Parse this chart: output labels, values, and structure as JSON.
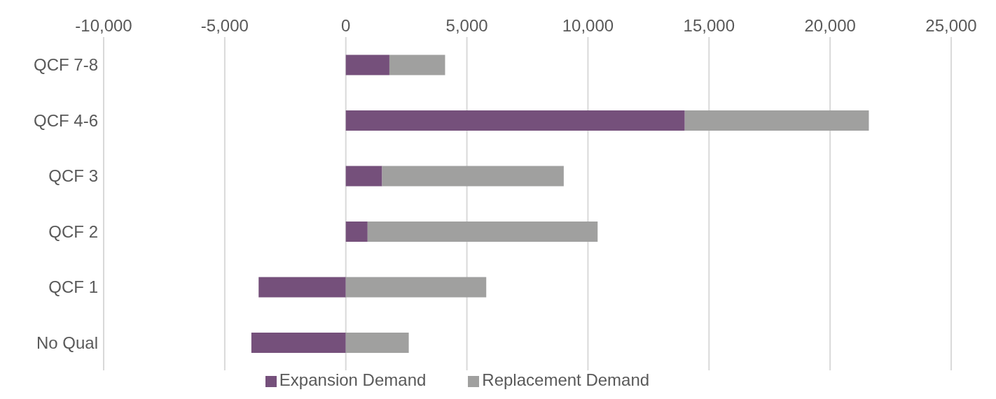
{
  "chart_data": {
    "type": "bar",
    "orientation": "horizontal",
    "stacked": true,
    "categories": [
      "QCF 7-8",
      "QCF 4-6",
      "QCF 3",
      "QCF 2",
      "QCF 1",
      "No Qual"
    ],
    "series": [
      {
        "name": "Expansion Demand",
        "color": "#75507b",
        "values": [
          1800,
          14000,
          1500,
          900,
          -3600,
          -3900
        ]
      },
      {
        "name": "Replacement Demand",
        "color": "#a0a09f",
        "values": [
          2300,
          7600,
          7500,
          9500,
          5800,
          2600
        ]
      }
    ],
    "xlim": [
      -10000,
      25000
    ],
    "xticks": [
      {
        "value": -10000,
        "label": "-10,000"
      },
      {
        "value": -5000,
        "label": "-5,000"
      },
      0,
      {
        "value": 5000,
        "label": "5,000"
      },
      {
        "value": 10000,
        "label": "10,000"
      },
      {
        "value": 15000,
        "label": "15,000"
      },
      {
        "value": 20000,
        "label": "20,000"
      },
      {
        "value": 25000,
        "label": "25,000"
      }
    ],
    "grid": "x",
    "legend": "bottom"
  }
}
